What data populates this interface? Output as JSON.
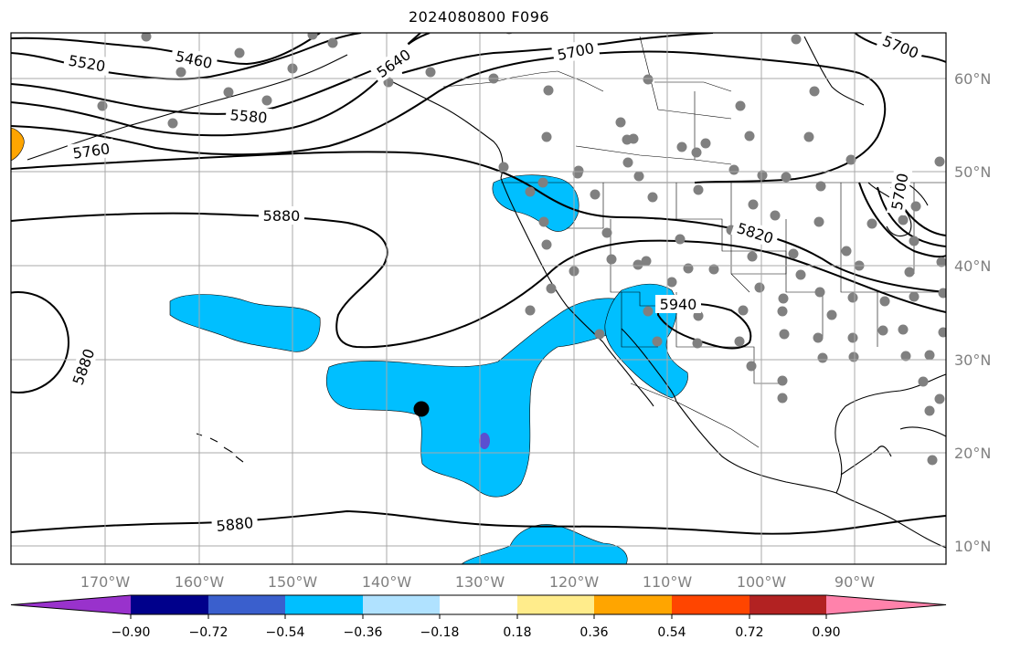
{
  "title": "2024080800 F096",
  "map": {
    "lon_range": [
      -180,
      -80
    ],
    "lat_range": [
      8,
      65
    ],
    "lon_ticks": [
      "170°W",
      "160°W",
      "150°W",
      "140°W",
      "130°W",
      "120°W",
      "110°W",
      "100°W",
      "90°W"
    ],
    "lat_ticks": [
      "10°N",
      "20°N",
      "30°N",
      "40°N",
      "50°N",
      "60°N"
    ],
    "grid": true,
    "contour_labels": [
      "5520",
      "5460",
      "5640",
      "5700",
      "5700",
      "5580",
      "5760",
      "5880",
      "5820",
      "5940",
      "5880",
      "5880",
      "5700"
    ],
    "marker": {
      "lon": -136,
      "lat": 24.5,
      "color": "#000000"
    }
  },
  "colorbar": {
    "tick_labels": [
      "−0.90",
      "−0.72",
      "−0.54",
      "−0.36",
      "−0.18",
      "0.18",
      "0.36",
      "0.54",
      "0.72",
      "0.90"
    ],
    "colors": [
      "#9932cc",
      "#00008b",
      "#3a5fcd",
      "#00bfff",
      "#b0e2ff",
      "#ffffff",
      "#ffec8b",
      "#ffa500",
      "#ff4500",
      "#b22222",
      "#ff82ab"
    ]
  },
  "station_color": "#808080",
  "anomaly_colors": {
    "light_blue": "#00bfff",
    "purple": "#5b4fd0",
    "orange": "#ffa500"
  }
}
